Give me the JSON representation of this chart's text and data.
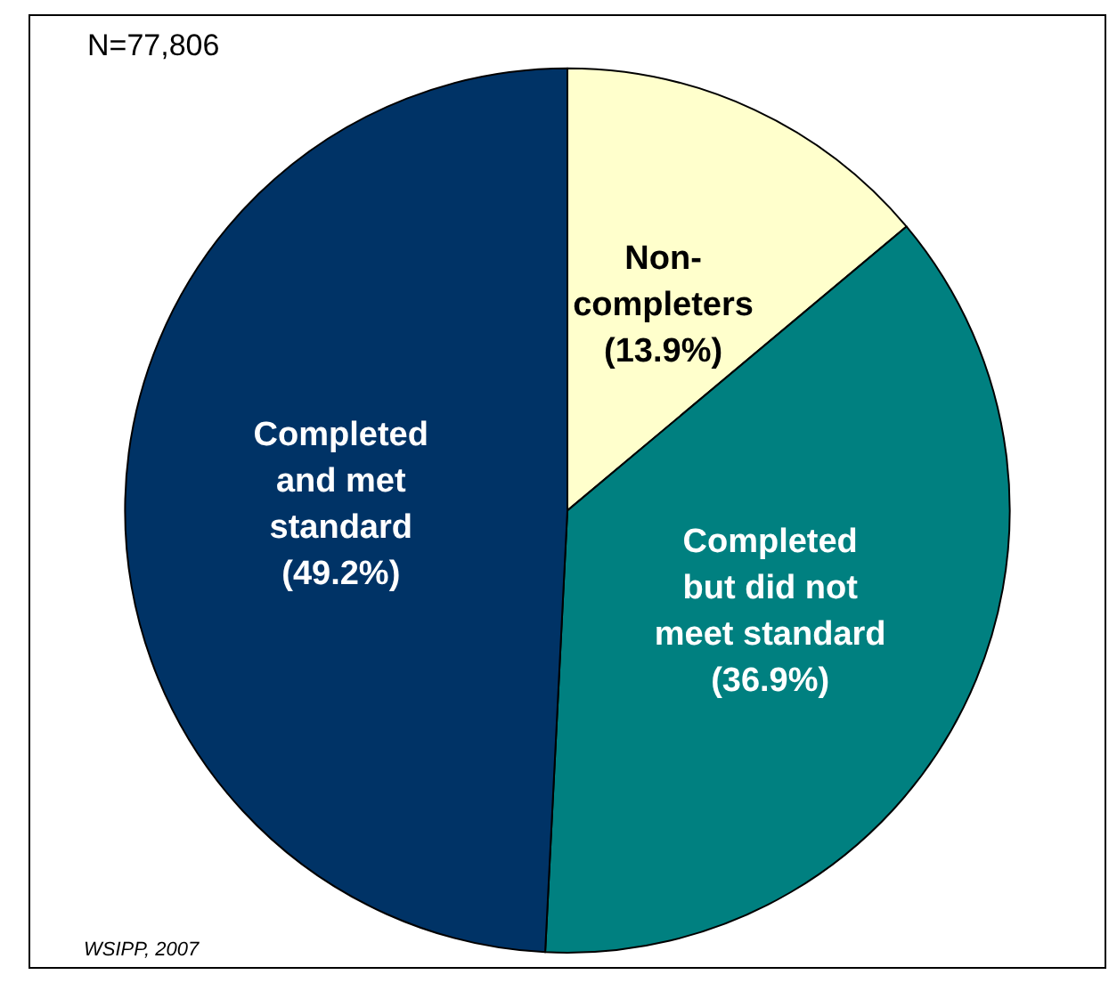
{
  "chart_data": {
    "type": "pie",
    "categories": [
      "Non-\ncompleters",
      "Completed\nbut did not\nmeet standard",
      "Completed\nand met\nstandard"
    ],
    "values": [
      13.9,
      36.9,
      49.2
    ],
    "colors": [
      "#ffffcc",
      "#008080",
      "#003366"
    ],
    "value_labels": [
      "(13.9%)",
      "(36.9%)",
      "(49.2%)"
    ],
    "annotations": [
      "N=77,806",
      "WSIPP, 2007"
    ],
    "legend": false
  }
}
